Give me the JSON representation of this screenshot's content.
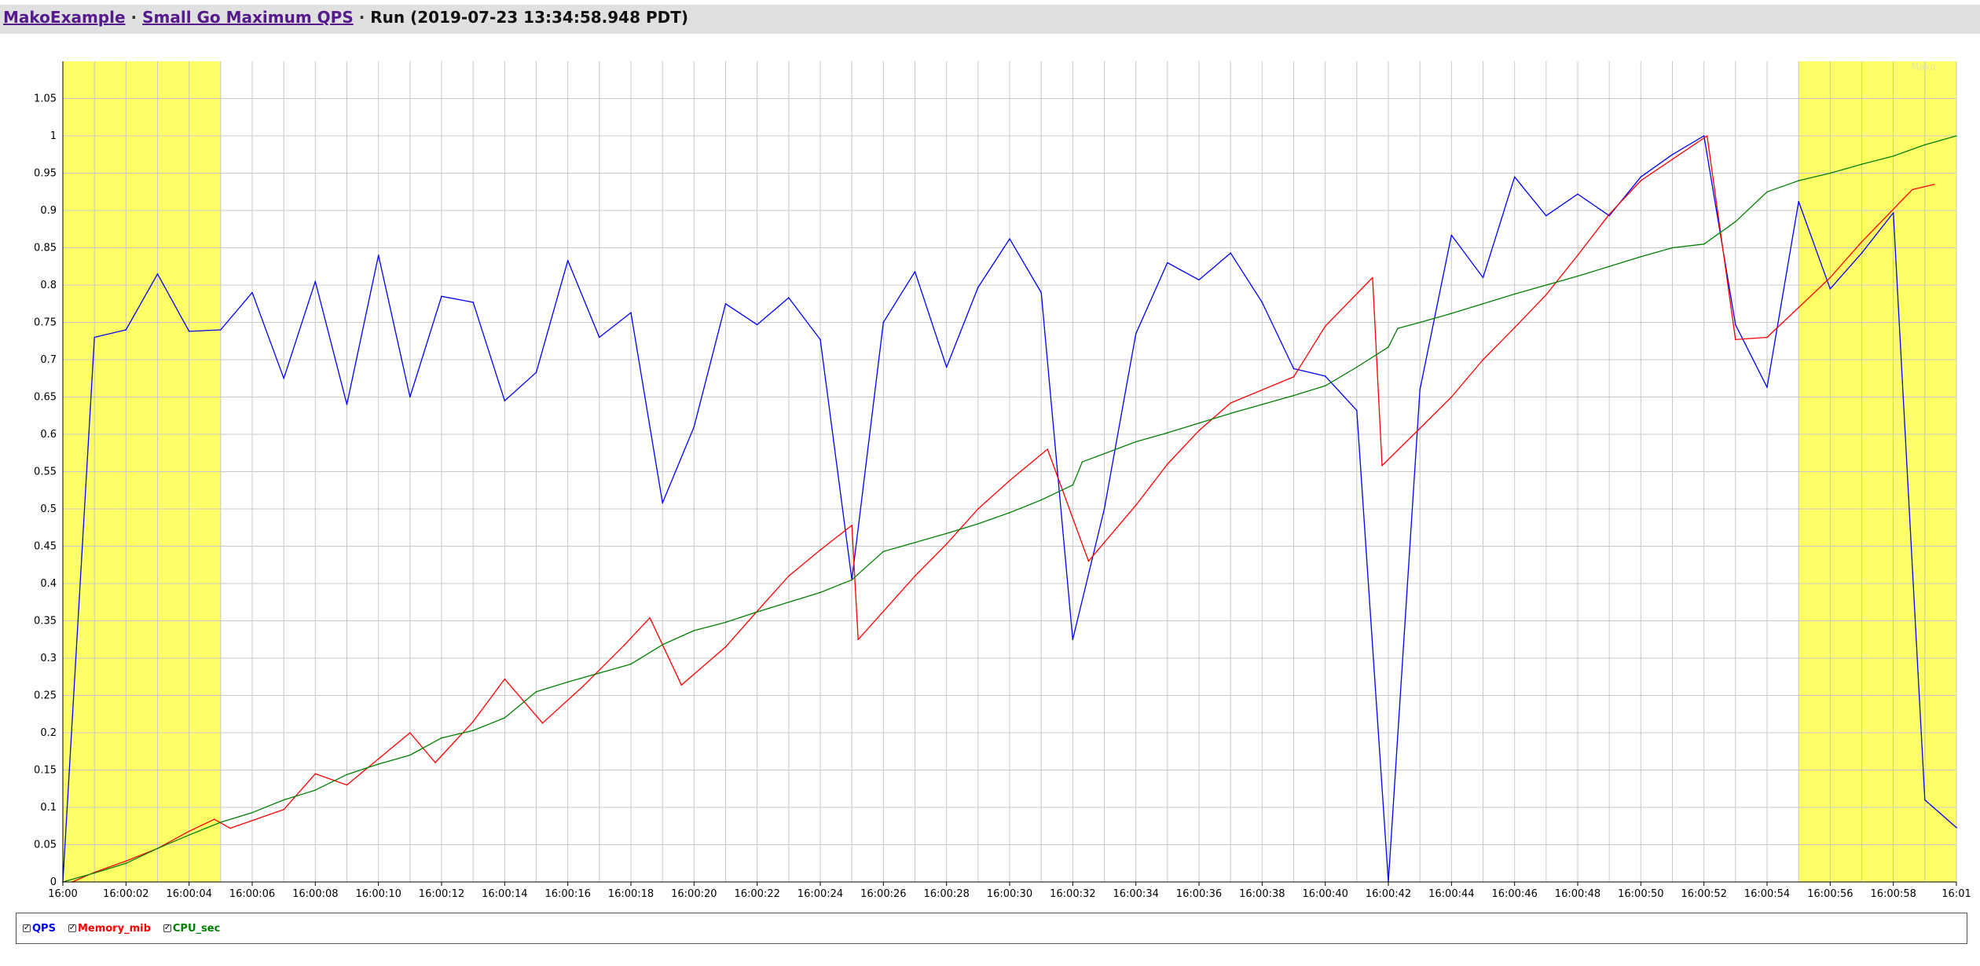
{
  "header": {
    "benchmark_link": "MakoExample",
    "separator": "·",
    "metric_link": "Small Go Maximum QPS",
    "run_text": "Run (2019-07-23 13:34:58.948 PDT)"
  },
  "watermark": "Mako",
  "legend": {
    "items": [
      {
        "label": "QPS",
        "checked": true,
        "color": "#0000ff"
      },
      {
        "label": "Memory_mib",
        "checked": true,
        "color": "#ff0000"
      },
      {
        "label": "CPU_sec",
        "checked": true,
        "color": "#008000"
      }
    ]
  },
  "colors": {
    "highlight": "#ffff66",
    "grid": "#c8c8c8",
    "axis": "#000000",
    "header_bg": "#e0e0e0"
  },
  "chart_data": {
    "type": "line",
    "xlim": [
      0,
      60
    ],
    "ylim": [
      0,
      1.1
    ],
    "grid": true,
    "legend_position": "bottom-left",
    "y_ticks": [
      "0",
      "0.05",
      "0.1",
      "0.15",
      "0.2",
      "0.25",
      "0.3",
      "0.35",
      "0.4",
      "0.45",
      "0.5",
      "0.55",
      "0.6",
      "0.65",
      "0.7",
      "0.75",
      "0.8",
      "0.85",
      "0.9",
      "0.95",
      "1",
      "1.05"
    ],
    "x_ticks": [
      {
        "t": 0,
        "label": "16:00"
      },
      {
        "t": 2,
        "label": "16:00:02"
      },
      {
        "t": 4,
        "label": "16:00:04"
      },
      {
        "t": 6,
        "label": "16:00:06"
      },
      {
        "t": 8,
        "label": "16:00:08"
      },
      {
        "t": 10,
        "label": "16:00:10"
      },
      {
        "t": 12,
        "label": "16:00:12"
      },
      {
        "t": 14,
        "label": "16:00:14"
      },
      {
        "t": 16,
        "label": "16:00:16"
      },
      {
        "t": 18,
        "label": "16:00:18"
      },
      {
        "t": 20,
        "label": "16:00:20"
      },
      {
        "t": 22,
        "label": "16:00:22"
      },
      {
        "t": 24,
        "label": "16:00:24"
      },
      {
        "t": 26,
        "label": "16:00:26"
      },
      {
        "t": 28,
        "label": "16:00:28"
      },
      {
        "t": 30,
        "label": "16:00:30"
      },
      {
        "t": 32,
        "label": "16:00:32"
      },
      {
        "t": 34,
        "label": "16:00:34"
      },
      {
        "t": 36,
        "label": "16:00:36"
      },
      {
        "t": 38,
        "label": "16:00:38"
      },
      {
        "t": 40,
        "label": "16:00:40"
      },
      {
        "t": 42,
        "label": "16:00:42"
      },
      {
        "t": 44,
        "label": "16:00:44"
      },
      {
        "t": 46,
        "label": "16:00:46"
      },
      {
        "t": 48,
        "label": "16:00:48"
      },
      {
        "t": 50,
        "label": "16:00:50"
      },
      {
        "t": 52,
        "label": "16:00:52"
      },
      {
        "t": 54,
        "label": "16:00:54"
      },
      {
        "t": 56,
        "label": "16:00:56"
      },
      {
        "t": 58,
        "label": "16:00:58"
      },
      {
        "t": 60,
        "label": "16:01"
      }
    ],
    "highlight_ranges": [
      [
        0,
        5
      ],
      [
        55,
        60
      ]
    ],
    "series": [
      {
        "name": "QPS",
        "color": "#0000ff",
        "points": [
          [
            0,
            0
          ],
          [
            1,
            0.73
          ],
          [
            2,
            0.74
          ],
          [
            3,
            0.815
          ],
          [
            4,
            0.738
          ],
          [
            5,
            0.74
          ],
          [
            6,
            0.79
          ],
          [
            7,
            0.675
          ],
          [
            8,
            0.805
          ],
          [
            9,
            0.64
          ],
          [
            10,
            0.84
          ],
          [
            11,
            0.65
          ],
          [
            12,
            0.785
          ],
          [
            13,
            0.777
          ],
          [
            14,
            0.645
          ],
          [
            15,
            0.683
          ],
          [
            16,
            0.833
          ],
          [
            17,
            0.73
          ],
          [
            18,
            0.763
          ],
          [
            19,
            0.508
          ],
          [
            20,
            0.61
          ],
          [
            21,
            0.775
          ],
          [
            22,
            0.747
          ],
          [
            23,
            0.783
          ],
          [
            24,
            0.727
          ],
          [
            25,
            0.405
          ],
          [
            26,
            0.75
          ],
          [
            27,
            0.818
          ],
          [
            28,
            0.69
          ],
          [
            29,
            0.797
          ],
          [
            30,
            0.862
          ],
          [
            31,
            0.79
          ],
          [
            32,
            0.325
          ],
          [
            33,
            0.5
          ],
          [
            34,
            0.735
          ],
          [
            35,
            0.83
          ],
          [
            36,
            0.807
          ],
          [
            37,
            0.843
          ],
          [
            38,
            0.777
          ],
          [
            39,
            0.688
          ],
          [
            40,
            0.678
          ],
          [
            41,
            0.632
          ],
          [
            42,
            0
          ],
          [
            43,
            0.66
          ],
          [
            44,
            0.867
          ],
          [
            45,
            0.81
          ],
          [
            46,
            0.945
          ],
          [
            47,
            0.893
          ],
          [
            48,
            0.922
          ],
          [
            49,
            0.893
          ],
          [
            50,
            0.945
          ],
          [
            51,
            0.975
          ],
          [
            52,
            1.0
          ],
          [
            53,
            0.747
          ],
          [
            54,
            0.663
          ],
          [
            55,
            0.912
          ],
          [
            56,
            0.795
          ],
          [
            57,
            0.843
          ],
          [
            58,
            0.897
          ],
          [
            59,
            0.11
          ],
          [
            60,
            0.073
          ]
        ]
      },
      {
        "name": "Memory_mib",
        "color": "#ff0000",
        "points": [
          [
            0.3,
            0
          ],
          [
            1,
            0.013
          ],
          [
            2,
            0.028
          ],
          [
            3,
            0.045
          ],
          [
            4,
            0.068
          ],
          [
            4.8,
            0.084
          ],
          [
            5.3,
            0.072
          ],
          [
            7,
            0.097
          ],
          [
            8,
            0.145
          ],
          [
            9,
            0.13
          ],
          [
            10,
            0.165
          ],
          [
            11,
            0.2
          ],
          [
            11.8,
            0.16
          ],
          [
            13,
            0.215
          ],
          [
            14,
            0.272
          ],
          [
            15.2,
            0.213
          ],
          [
            16.5,
            0.263
          ],
          [
            17.8,
            0.318
          ],
          [
            18.6,
            0.354
          ],
          [
            19.6,
            0.264
          ],
          [
            21,
            0.315
          ],
          [
            22,
            0.363
          ],
          [
            23,
            0.41
          ],
          [
            24,
            0.445
          ],
          [
            25,
            0.478
          ],
          [
            25.2,
            0.325
          ],
          [
            27,
            0.41
          ],
          [
            28,
            0.453
          ],
          [
            29,
            0.5
          ],
          [
            30,
            0.538
          ],
          [
            31.2,
            0.58
          ],
          [
            32.5,
            0.43
          ],
          [
            34,
            0.505
          ],
          [
            35,
            0.56
          ],
          [
            36,
            0.605
          ],
          [
            37,
            0.642
          ],
          [
            39,
            0.677
          ],
          [
            40,
            0.745
          ],
          [
            41.5,
            0.81
          ],
          [
            41.8,
            0.558
          ],
          [
            43,
            0.608
          ],
          [
            44,
            0.65
          ],
          [
            45,
            0.7
          ],
          [
            46,
            0.743
          ],
          [
            47,
            0.787
          ],
          [
            48,
            0.84
          ],
          [
            49,
            0.895
          ],
          [
            50,
            0.94
          ],
          [
            52.1,
            1.0
          ],
          [
            53,
            0.727
          ],
          [
            54,
            0.73
          ],
          [
            55,
            0.77
          ],
          [
            56,
            0.81
          ],
          [
            57,
            0.858
          ],
          [
            58.6,
            0.928
          ],
          [
            59.3,
            0.935
          ]
        ]
      },
      {
        "name": "CPU_sec",
        "color": "#008000",
        "points": [
          [
            0,
            0
          ],
          [
            1,
            0.012
          ],
          [
            2,
            0.025
          ],
          [
            3,
            0.045
          ],
          [
            4,
            0.063
          ],
          [
            5,
            0.08
          ],
          [
            6,
            0.093
          ],
          [
            7,
            0.11
          ],
          [
            8,
            0.123
          ],
          [
            9,
            0.144
          ],
          [
            10,
            0.158
          ],
          [
            11,
            0.17
          ],
          [
            12,
            0.193
          ],
          [
            13,
            0.203
          ],
          [
            14,
            0.22
          ],
          [
            15,
            0.255
          ],
          [
            16,
            0.268
          ],
          [
            17,
            0.28
          ],
          [
            18,
            0.292
          ],
          [
            19,
            0.318
          ],
          [
            20,
            0.337
          ],
          [
            21,
            0.348
          ],
          [
            22,
            0.362
          ],
          [
            23,
            0.375
          ],
          [
            24,
            0.388
          ],
          [
            25,
            0.405
          ],
          [
            26,
            0.443
          ],
          [
            27,
            0.455
          ],
          [
            28,
            0.467
          ],
          [
            29,
            0.48
          ],
          [
            30,
            0.495
          ],
          [
            31,
            0.512
          ],
          [
            32,
            0.532
          ],
          [
            32.3,
            0.563
          ],
          [
            34,
            0.59
          ],
          [
            35,
            0.602
          ],
          [
            36,
            0.615
          ],
          [
            37,
            0.628
          ],
          [
            38,
            0.64
          ],
          [
            39,
            0.652
          ],
          [
            40,
            0.665
          ],
          [
            41,
            0.69
          ],
          [
            42,
            0.717
          ],
          [
            42.3,
            0.742
          ],
          [
            43,
            0.75
          ],
          [
            44,
            0.762
          ],
          [
            45,
            0.775
          ],
          [
            46,
            0.788
          ],
          [
            47,
            0.8
          ],
          [
            48,
            0.812
          ],
          [
            49,
            0.825
          ],
          [
            50,
            0.838
          ],
          [
            51,
            0.85
          ],
          [
            52,
            0.855
          ],
          [
            53,
            0.885
          ],
          [
            54,
            0.925
          ],
          [
            55,
            0.94
          ],
          [
            56,
            0.95
          ],
          [
            57,
            0.962
          ],
          [
            58,
            0.973
          ],
          [
            59,
            0.988
          ],
          [
            60,
            1.0
          ]
        ]
      }
    ]
  }
}
